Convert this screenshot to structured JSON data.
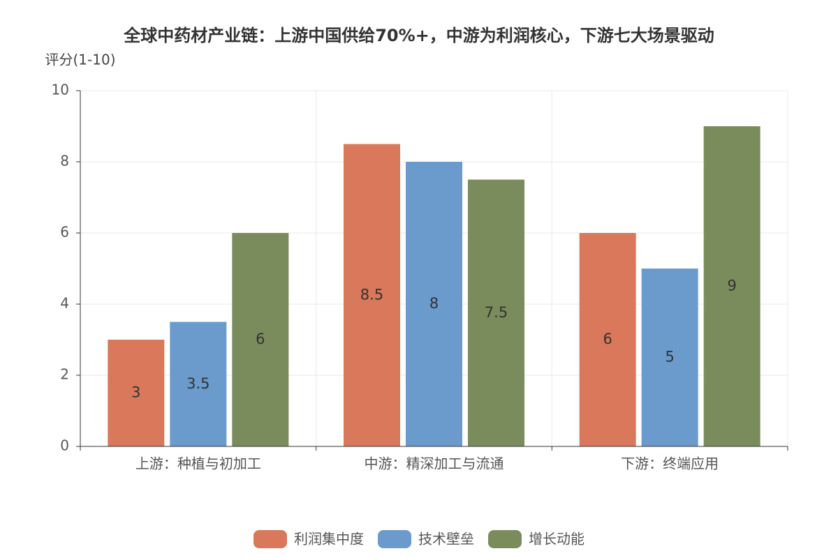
{
  "chart_data": {
    "type": "bar",
    "title": "全球中药材产业链：上游中国供给70%+，中游为利润核心，下游七大场景驱动",
    "y_label": "评分(1-10)",
    "categories": [
      "上游：种植与初加工",
      "中游：精深加工与流通",
      "下游：终端应用"
    ],
    "series": [
      {
        "name": "利润集中度",
        "color": "#d9785a",
        "values": [
          3,
          8.5,
          6
        ]
      },
      {
        "name": "技术壁垒",
        "color": "#6a9bcc",
        "values": [
          3.5,
          8,
          5
        ]
      },
      {
        "name": "增长动能",
        "color": "#7a8c5c",
        "values": [
          6,
          7.5,
          9
        ]
      }
    ],
    "ylim": [
      0,
      10
    ],
    "yticks": [
      0,
      2,
      4,
      6,
      8,
      10
    ],
    "grid": true
  }
}
